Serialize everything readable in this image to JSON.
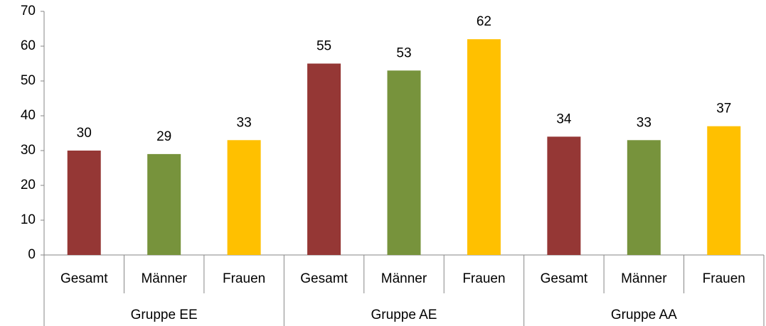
{
  "chart_data": {
    "type": "bar",
    "categories": [
      "Gruppe EE",
      "Gruppe AE",
      "Gruppe AA"
    ],
    "series": [
      {
        "name": "Gesamt",
        "color": "#953735",
        "values": [
          30,
          55,
          34
        ]
      },
      {
        "name": "Männer",
        "color": "#77933c",
        "values": [
          29,
          53,
          33
        ]
      },
      {
        "name": "Frauen",
        "color": "#ffc000",
        "values": [
          33,
          62,
          37
        ]
      }
    ],
    "ylim": [
      0,
      70
    ],
    "yticks": [
      0,
      10,
      20,
      30,
      40,
      50,
      60,
      70
    ],
    "grid": false
  }
}
